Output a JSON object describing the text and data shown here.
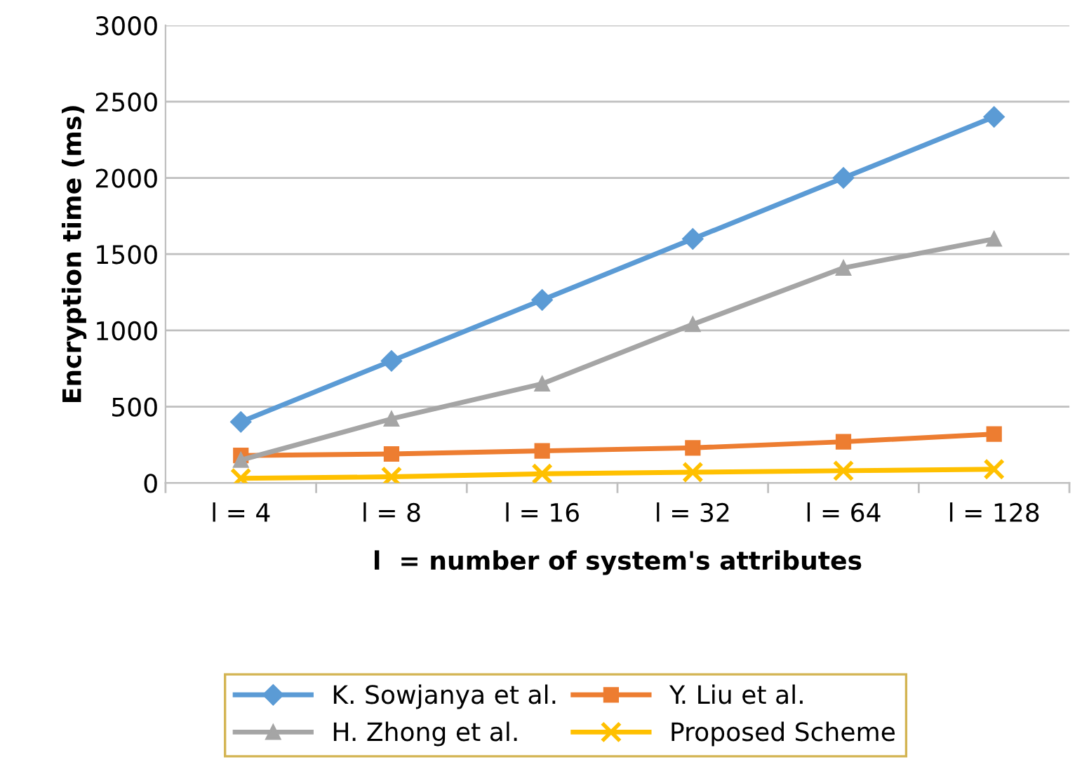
{
  "chart_data": {
    "type": "line",
    "xlabel": "l  = number of system's attributes",
    "ylabel": "Encryption time (ms)",
    "categories": [
      "l = 4",
      "l = 8",
      "l = 16",
      "l = 32",
      "l = 64",
      "l = 128"
    ],
    "ylim": [
      0,
      3000
    ],
    "yticks": [
      0,
      500,
      1000,
      1500,
      2000,
      2500,
      3000
    ],
    "grid": "y",
    "legend": "bottom",
    "series": [
      {
        "name": "K. Sowjanya et al.",
        "color": "#5b9bd5",
        "marker": "diamond",
        "values": [
          400,
          800,
          1200,
          1600,
          2000,
          2400
        ]
      },
      {
        "name": "Y. Liu et al.",
        "color": "#ed7d31",
        "marker": "square",
        "values": [
          180,
          190,
          210,
          230,
          270,
          320
        ]
      },
      {
        "name": "H. Zhong et al.",
        "color": "#a5a5a5",
        "marker": "triangle",
        "values": [
          150,
          420,
          650,
          1040,
          1410,
          1600
        ]
      },
      {
        "name": "Proposed Scheme",
        "color": "#ffc000",
        "marker": "cross",
        "values": [
          30,
          40,
          60,
          70,
          80,
          90
        ]
      }
    ]
  }
}
